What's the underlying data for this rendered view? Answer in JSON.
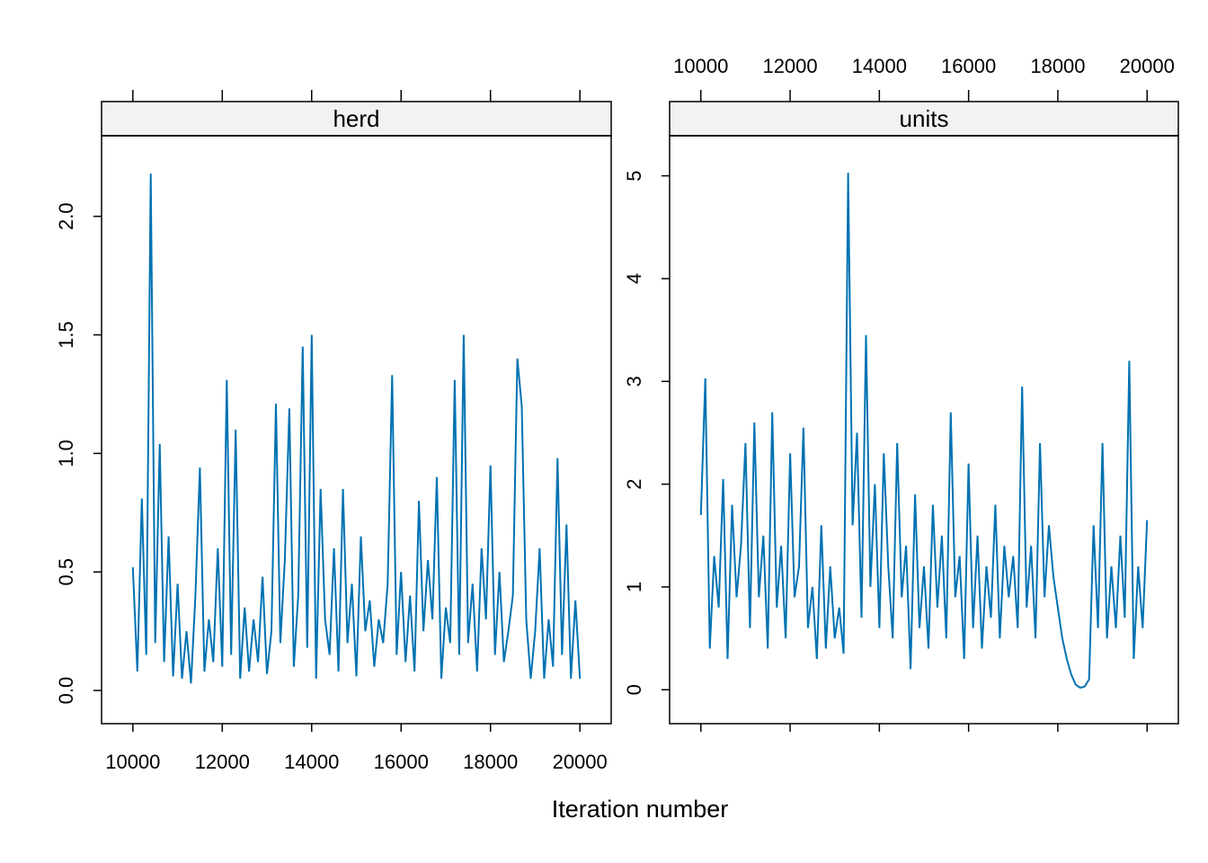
{
  "chart_data": [
    {
      "type": "line",
      "title": "herd",
      "xlabel": "Iteration number",
      "color": "#0072b2",
      "x": [
        10000,
        10100,
        10200,
        10300,
        10400,
        10500,
        10600,
        10700,
        10800,
        10900,
        11000,
        11100,
        11200,
        11300,
        11400,
        11500,
        11600,
        11700,
        11800,
        11900,
        12000,
        12100,
        12200,
        12300,
        12400,
        12500,
        12600,
        12700,
        12800,
        12900,
        13000,
        13100,
        13200,
        13300,
        13400,
        13500,
        13600,
        13700,
        13800,
        13900,
        14000,
        14100,
        14200,
        14300,
        14400,
        14500,
        14600,
        14700,
        14800,
        14900,
        15000,
        15100,
        15200,
        15300,
        15400,
        15500,
        15600,
        15700,
        15800,
        15900,
        16000,
        16100,
        16200,
        16300,
        16400,
        16500,
        16600,
        16700,
        16800,
        16900,
        17000,
        17100,
        17200,
        17300,
        17400,
        17500,
        17600,
        17700,
        17800,
        17900,
        18000,
        18100,
        18200,
        18300,
        18400,
        18500,
        18600,
        18700,
        18800,
        18900,
        19000,
        19100,
        19200,
        19300,
        19400,
        19500,
        19600,
        19700,
        19800,
        19900,
        20000
      ],
      "values": [
        0.52,
        0.08,
        0.81,
        0.15,
        2.18,
        0.2,
        1.04,
        0.12,
        0.65,
        0.06,
        0.45,
        0.05,
        0.25,
        0.03,
        0.4,
        0.94,
        0.08,
        0.3,
        0.12,
        0.6,
        0.1,
        1.31,
        0.15,
        1.1,
        0.05,
        0.35,
        0.08,
        0.3,
        0.12,
        0.48,
        0.07,
        0.25,
        1.21,
        0.2,
        0.55,
        1.19,
        0.1,
        0.4,
        1.45,
        0.18,
        1.5,
        0.05,
        0.85,
        0.3,
        0.15,
        0.6,
        0.08,
        0.85,
        0.2,
        0.45,
        0.06,
        0.65,
        0.25,
        0.38,
        0.1,
        0.3,
        0.2,
        0.45,
        1.33,
        0.15,
        0.5,
        0.12,
        0.4,
        0.08,
        0.8,
        0.25,
        0.55,
        0.3,
        0.9,
        0.05,
        0.35,
        0.2,
        1.31,
        0.15,
        1.5,
        0.2,
        0.45,
        0.08,
        0.6,
        0.3,
        0.95,
        0.15,
        0.5,
        0.12,
        0.25,
        0.4,
        1.4,
        1.2,
        0.3,
        0.05,
        0.25,
        0.6,
        0.05,
        0.3,
        0.1,
        0.98,
        0.15,
        0.7,
        0.05,
        0.38,
        0.05
      ],
      "xlim": [
        9300,
        20700
      ],
      "xticks": [
        10000,
        12000,
        14000,
        16000,
        18000,
        20000
      ],
      "ylim": [
        -0.14,
        2.34
      ],
      "yticks": [
        {
          "value": 0,
          "label": "0.0"
        },
        0.5,
        {
          "value": 1,
          "label": "1.0"
        },
        1.5,
        {
          "value": 2,
          "label": "2.0"
        }
      ]
    },
    {
      "type": "line",
      "title": "units",
      "color": "#0072b2",
      "x": [
        10000,
        10100,
        10200,
        10300,
        10400,
        10500,
        10600,
        10700,
        10800,
        10900,
        11000,
        11100,
        11200,
        11300,
        11400,
        11500,
        11600,
        11700,
        11800,
        11900,
        12000,
        12100,
        12200,
        12300,
        12400,
        12500,
        12600,
        12700,
        12800,
        12900,
        13000,
        13100,
        13200,
        13300,
        13400,
        13500,
        13600,
        13700,
        13800,
        13900,
        14000,
        14100,
        14200,
        14300,
        14400,
        14500,
        14600,
        14700,
        14800,
        14900,
        15000,
        15100,
        15200,
        15300,
        15400,
        15500,
        15600,
        15700,
        15800,
        15900,
        16000,
        16100,
        16200,
        16300,
        16400,
        16500,
        16600,
        16700,
        16800,
        16900,
        17000,
        17100,
        17200,
        17300,
        17400,
        17500,
        17600,
        17700,
        17800,
        17900,
        18000,
        18100,
        18200,
        18300,
        18400,
        18500,
        18600,
        18700,
        18800,
        18900,
        19000,
        19100,
        19200,
        19300,
        19400,
        19500,
        19600,
        19700,
        19800,
        19900,
        20000
      ],
      "values": [
        1.7,
        3.03,
        0.4,
        1.3,
        0.8,
        2.05,
        0.3,
        1.8,
        0.9,
        1.4,
        2.4,
        0.6,
        2.6,
        0.9,
        1.5,
        0.4,
        2.7,
        0.8,
        1.4,
        0.5,
        2.3,
        0.9,
        1.2,
        2.55,
        0.6,
        1.0,
        0.3,
        1.6,
        0.4,
        1.2,
        0.5,
        0.8,
        0.35,
        5.03,
        1.6,
        2.5,
        0.7,
        3.45,
        1.0,
        2.0,
        0.6,
        2.3,
        1.2,
        0.5,
        2.4,
        0.9,
        1.4,
        0.2,
        1.9,
        0.6,
        1.2,
        0.4,
        1.8,
        0.8,
        1.5,
        0.5,
        2.7,
        0.9,
        1.3,
        0.3,
        2.2,
        0.6,
        1.5,
        0.4,
        1.2,
        0.7,
        1.8,
        0.5,
        1.4,
        0.9,
        1.3,
        0.6,
        2.95,
        0.8,
        1.4,
        0.5,
        2.4,
        0.9,
        1.6,
        1.1,
        0.8,
        0.5,
        0.3,
        0.15,
        0.05,
        0.02,
        0.03,
        0.1,
        1.6,
        0.6,
        2.4,
        0.5,
        1.2,
        0.6,
        1.5,
        0.7,
        3.2,
        0.3,
        1.2,
        0.6,
        1.65
      ],
      "xlim": [
        9300,
        20700
      ],
      "xticks": [
        10000,
        12000,
        14000,
        16000,
        18000,
        20000
      ],
      "ylim": [
        -0.33,
        5.39
      ],
      "yticks": [
        0,
        1,
        2,
        3,
        4,
        5
      ]
    }
  ]
}
